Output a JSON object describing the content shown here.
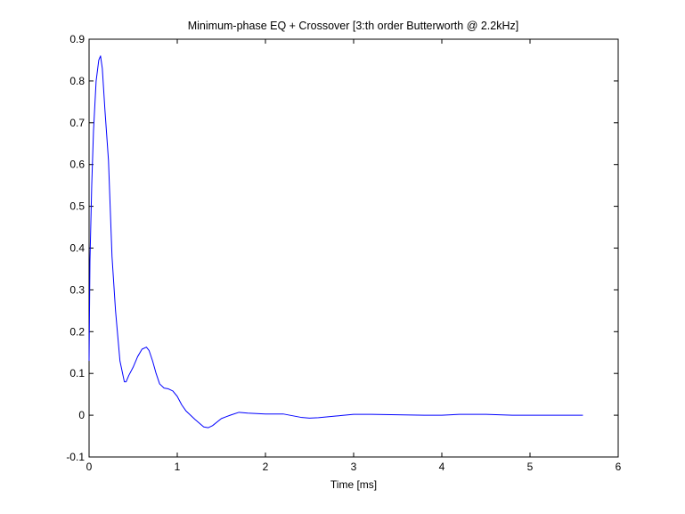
{
  "chart_data": {
    "type": "line",
    "title": "Minimum-phase EQ + Crossover [3:th order Butterworth @ 2.2kHz]",
    "xlabel": "Time [ms]",
    "ylabel": "",
    "xlim": [
      0,
      6
    ],
    "ylim": [
      -0.1,
      0.9
    ],
    "xticks": [
      0,
      1,
      2,
      3,
      4,
      5,
      6
    ],
    "yticks": [
      -0.1,
      0,
      0.1,
      0.2,
      0.3,
      0.4,
      0.5,
      0.6,
      0.7,
      0.8,
      0.9
    ],
    "xtick_labels": [
      "0",
      "1",
      "2",
      "3",
      "4",
      "5",
      "6"
    ],
    "ytick_labels": [
      "-0.1",
      "0",
      "0.1",
      "0.2",
      "0.3",
      "0.4",
      "0.5",
      "0.6",
      "0.7",
      "0.8",
      "0.9"
    ],
    "grid": false,
    "line_color": "#0000ff",
    "series": [
      {
        "x": [
          0,
          0.01,
          0.03,
          0.05,
          0.08,
          0.11,
          0.13,
          0.15,
          0.18,
          0.22,
          0.26,
          0.3,
          0.35,
          0.4,
          0.42,
          0.45,
          0.5,
          0.55,
          0.6,
          0.65,
          0.68,
          0.72,
          0.76,
          0.8,
          0.85,
          0.9,
          0.95,
          1.0,
          1.05,
          1.1,
          1.2,
          1.3,
          1.35,
          1.4,
          1.5,
          1.6,
          1.7,
          1.8,
          2.0,
          2.2,
          2.4,
          2.5,
          2.6,
          2.8,
          3.0,
          3.2,
          3.5,
          3.8,
          4.0,
          4.2,
          4.5,
          4.8,
          5.0,
          5.3,
          5.6
        ],
        "y": [
          0.13,
          0.37,
          0.55,
          0.68,
          0.8,
          0.85,
          0.86,
          0.83,
          0.73,
          0.61,
          0.38,
          0.25,
          0.13,
          0.08,
          0.08,
          0.095,
          0.115,
          0.14,
          0.158,
          0.163,
          0.155,
          0.13,
          0.1,
          0.075,
          0.065,
          0.063,
          0.058,
          0.045,
          0.025,
          0.01,
          -0.01,
          -0.028,
          -0.03,
          -0.025,
          -0.008,
          0.0,
          0.007,
          0.005,
          0.003,
          0.003,
          -0.005,
          -0.007,
          -0.006,
          -0.002,
          0.002,
          0.002,
          0.001,
          0.0,
          0.0,
          0.002,
          0.002,
          0.0,
          0.0,
          0.0,
          0.0
        ]
      }
    ]
  }
}
